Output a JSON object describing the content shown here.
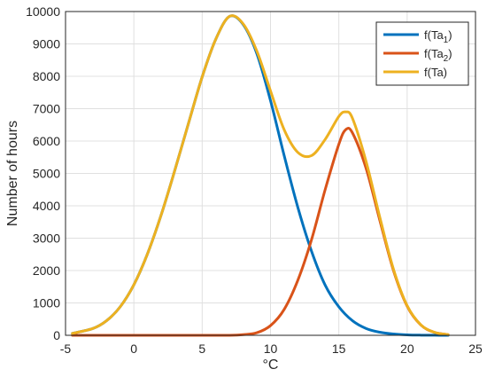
{
  "chart_data": {
    "type": "line",
    "xlabel": "°C",
    "ylabel": "Number of hours",
    "xlim": [
      -5,
      25
    ],
    "ylim": [
      0,
      10000
    ],
    "xticks": [
      -5,
      0,
      5,
      10,
      15,
      20,
      25
    ],
    "yticks": [
      0,
      1000,
      2000,
      3000,
      4000,
      5000,
      6000,
      7000,
      8000,
      9000,
      10000
    ],
    "xtick_labels": [
      "-5",
      "0",
      "5",
      "10",
      "15",
      "20",
      "25"
    ],
    "ytick_labels": [
      "0",
      "1000",
      "2000",
      "3000",
      "4000",
      "5000",
      "6000",
      "7000",
      "8000",
      "9000",
      "10000"
    ],
    "grid": true,
    "legend_position": "top-right",
    "series": [
      {
        "name": "f(Ta1)",
        "label_main": "f(Ta",
        "label_sub": "1",
        "label_end": ")",
        "color": "#0072BD",
        "x": [
          -4.5,
          -3,
          -2,
          -1,
          0,
          1,
          2,
          3,
          4,
          5,
          6,
          7,
          8,
          9,
          10,
          11,
          12,
          13,
          14,
          15,
          16,
          17,
          18,
          19,
          20,
          21,
          22,
          23
        ],
        "y": [
          60,
          210,
          450,
          880,
          1560,
          2520,
          3720,
          5100,
          6550,
          7980,
          9150,
          9850,
          9600,
          8700,
          7250,
          5550,
          3950,
          2600,
          1550,
          880,
          450,
          210,
          95,
          40,
          15,
          5,
          2,
          0
        ]
      },
      {
        "name": "f(Ta2)",
        "label_main": "f(Ta",
        "label_sub": "2",
        "label_end": ")",
        "color": "#D95319",
        "x": [
          -4.5,
          0,
          5,
          7,
          8,
          9,
          10,
          11,
          12,
          13,
          14,
          15,
          15.5,
          16,
          17,
          18,
          19,
          20,
          21,
          22,
          23
        ],
        "y": [
          0,
          0,
          0,
          0,
          20,
          80,
          300,
          800,
          1700,
          2950,
          4500,
          5900,
          6350,
          6250,
          5150,
          3550,
          2000,
          900,
          320,
          90,
          20
        ]
      },
      {
        "name": "f(Ta)",
        "label_main": "f(Ta)",
        "label_sub": "",
        "label_end": "",
        "color": "#EDB120",
        "x": [
          -4.5,
          -3,
          -2,
          -1,
          0,
          1,
          2,
          3,
          4,
          5,
          6,
          7,
          8,
          9,
          10,
          11,
          12,
          13,
          14,
          15,
          15.5,
          16,
          17,
          18,
          19,
          20,
          21,
          22,
          23
        ],
        "y": [
          60,
          210,
          450,
          880,
          1560,
          2520,
          3720,
          5100,
          6550,
          7980,
          9150,
          9850,
          9620,
          8780,
          7550,
          6350,
          5650,
          5550,
          6050,
          6760,
          6900,
          6700,
          5360,
          3645,
          2040,
          915,
          325,
          92,
          20
        ]
      }
    ]
  }
}
